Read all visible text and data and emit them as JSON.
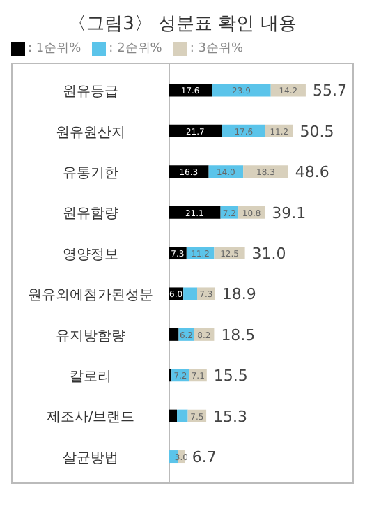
{
  "chart_data": {
    "type": "bar",
    "orientation": "horizontal",
    "stacked": true,
    "title": "〈그림3〉 성분표 확인 내용",
    "categories": [
      "원유등급",
      "원유원산지",
      "유통기한",
      "원유함량",
      "영양정보",
      "원유외에첨가된성분",
      "유지방함량",
      "칼로리",
      "제조사/브랜드",
      "살균방법"
    ],
    "series": [
      {
        "name": ": 1순위%",
        "color": "#000000",
        "values": [
          17.6,
          21.7,
          16.3,
          21.1,
          7.3,
          6.0,
          4.1,
          1.2,
          3.4,
          0
        ],
        "value_labels": [
          "17.6",
          "21.7",
          "16.3",
          "21.1",
          "7.3",
          "6.0",
          null,
          null,
          null,
          null
        ]
      },
      {
        "name": ": 2순위%",
        "color": "#5bc4ea",
        "values": [
          23.9,
          17.6,
          14.0,
          7.2,
          11.2,
          5.6,
          6.2,
          7.2,
          4.4,
          3.7
        ],
        "value_labels": [
          "23.9",
          "17.6",
          "14.0",
          "7.2",
          "11.2",
          null,
          "6.2",
          "7.2",
          null,
          null
        ]
      },
      {
        "name": ": 3순위%",
        "color": "#d8d0bc",
        "values": [
          14.2,
          11.2,
          18.3,
          10.8,
          12.5,
          7.3,
          8.2,
          7.1,
          7.5,
          3.0
        ],
        "value_labels": [
          "14.2",
          "11.2",
          "18.3",
          "10.8",
          "12.5",
          "7.3",
          "8.2",
          "7.1",
          "7.5",
          "3.0"
        ]
      }
    ],
    "totals": [
      "55.7",
      "50.5",
      "48.6",
      "39.1",
      "31.0",
      "18.9",
      "18.5",
      "15.5",
      "15.3",
      "6.7"
    ],
    "legend": "top left"
  }
}
